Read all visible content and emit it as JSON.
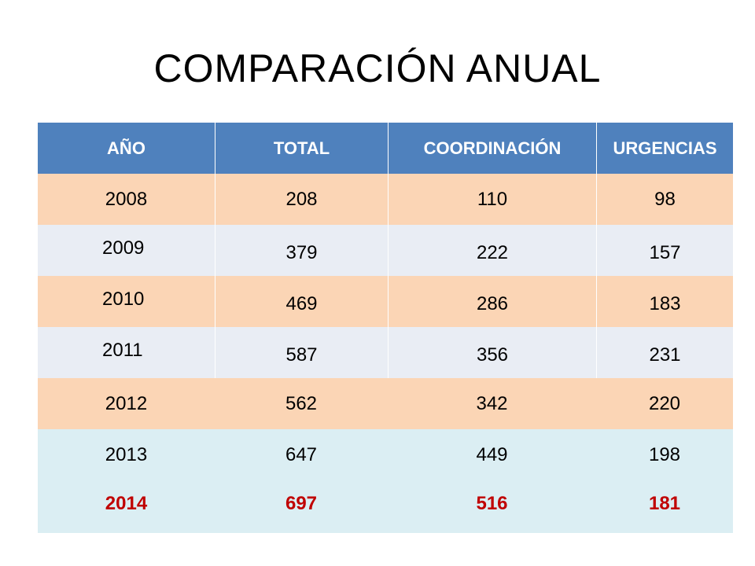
{
  "title": "COMPARACIÓN ANUAL",
  "columns": [
    "AÑO",
    "TOTAL",
    "COORDINACIÓN",
    "URGENCIAS"
  ],
  "rows": [
    [
      "2008",
      "208",
      "110",
      "98"
    ],
    [
      "2009",
      "379",
      "222",
      "157"
    ],
    [
      "2010",
      "469",
      "286",
      "183"
    ],
    [
      "2011",
      "587",
      "356",
      "231"
    ],
    [
      "2012",
      "562",
      "342",
      "220"
    ],
    [
      "2013",
      "647",
      "449",
      "198"
    ],
    [
      "2014",
      "697",
      "516",
      "181"
    ]
  ],
  "colors": {
    "header_bg": "#4f81bd",
    "row_orange": "#fbd5b5",
    "row_blue": "#e9edf4",
    "row_light": "#dbeef3",
    "highlight_text": "#c00000"
  }
}
